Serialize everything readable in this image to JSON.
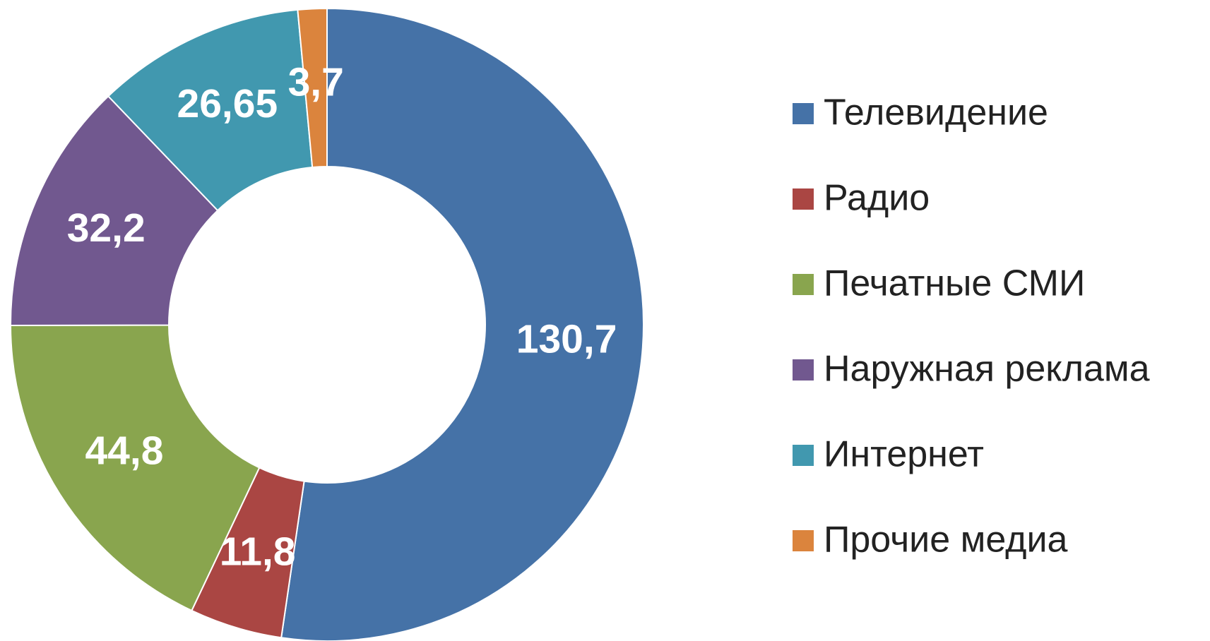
{
  "chart_data": {
    "type": "donut",
    "categories": [
      "Телевидение",
      "Радио",
      "Печатные СМИ",
      "Наружная реклама",
      "Интернет",
      "Прочие медиа"
    ],
    "values": [
      130.7,
      11.8,
      44.8,
      32.2,
      26.65,
      3.7
    ],
    "value_labels": [
      "130,7",
      "11,8",
      "44,8",
      "32,2",
      "26,65",
      "3,7"
    ],
    "colors": [
      "#4572a7",
      "#aa4643",
      "#89a54e",
      "#71588f",
      "#4198af",
      "#db843d"
    ],
    "legend": "right"
  }
}
